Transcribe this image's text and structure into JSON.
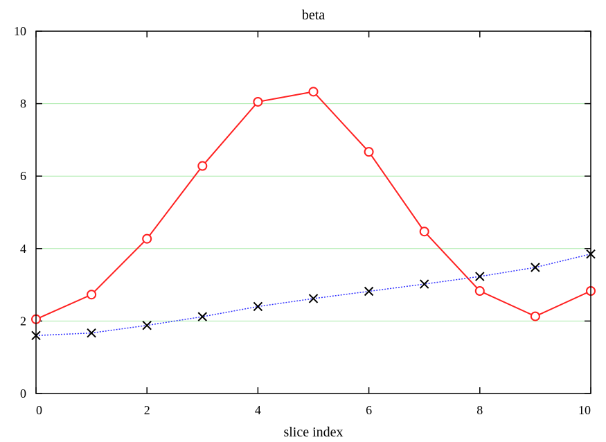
{
  "chart_data": {
    "type": "line",
    "title": "beta",
    "xlabel": "slice index",
    "ylabel": "",
    "xlim": [
      0,
      10
    ],
    "ylim": [
      0,
      10
    ],
    "x_ticks": [
      0,
      2,
      4,
      6,
      8,
      10
    ],
    "y_ticks": [
      0,
      2,
      4,
      6,
      8,
      10
    ],
    "grid": {
      "horizontal": true,
      "vertical": false,
      "color": "#a8eaa8"
    },
    "x": [
      0,
      1,
      2,
      3,
      4,
      5,
      6,
      7,
      8,
      9,
      10
    ],
    "series": [
      {
        "values": [
          2.05,
          2.73,
          4.27,
          6.28,
          8.05,
          8.33,
          6.67,
          4.47,
          2.83,
          2.13,
          2.83
        ],
        "color": "#ff2020",
        "line_style": "solid",
        "marker": "circle"
      },
      {
        "values": [
          1.6,
          1.67,
          1.88,
          2.12,
          2.4,
          2.62,
          2.82,
          3.02,
          3.23,
          3.48,
          3.85
        ],
        "color": "#3030ff",
        "marker_color": "#000000",
        "line_style": "dotted",
        "marker": "x"
      }
    ]
  }
}
